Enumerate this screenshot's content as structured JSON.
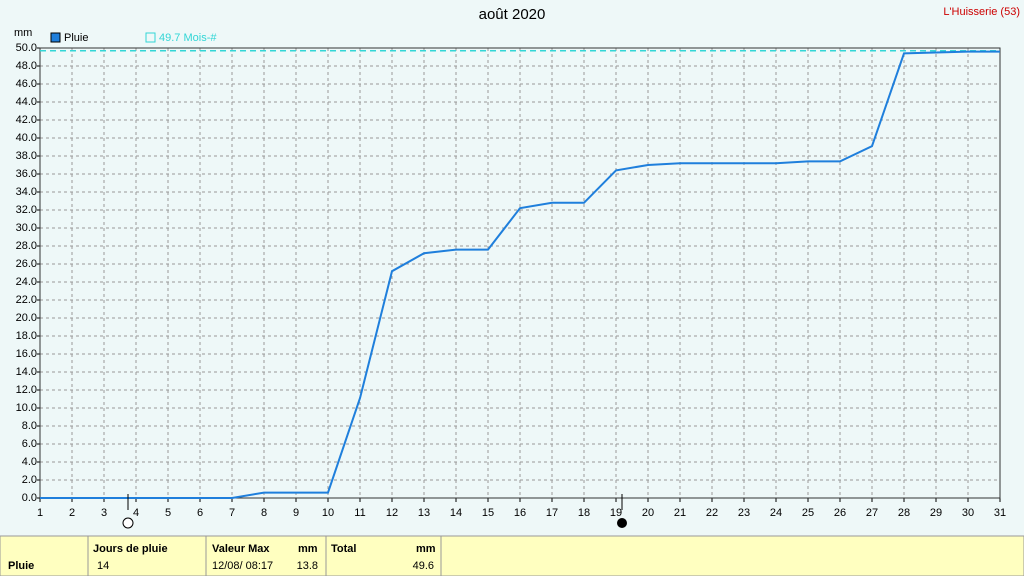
{
  "chart_data": {
    "type": "line",
    "title": "août 2020",
    "station": "L'Huisserie (53)",
    "y_label": "mm",
    "x": [
      1,
      2,
      3,
      4,
      5,
      6,
      7,
      8,
      9,
      10,
      11,
      12,
      13,
      14,
      15,
      16,
      17,
      18,
      19,
      20,
      21,
      22,
      23,
      24,
      25,
      26,
      27,
      28,
      29,
      30,
      31
    ],
    "series": [
      {
        "name": "Pluie",
        "color": "#1f7fdc",
        "values": [
          0,
          0,
          0,
          0,
          0,
          0,
          0,
          0.6,
          0.6,
          0.6,
          11.1,
          25.2,
          27.2,
          27.6,
          27.6,
          32.2,
          32.8,
          32.8,
          36.4,
          37.0,
          37.2,
          37.2,
          37.2,
          37.2,
          37.4,
          37.4,
          39.1,
          49.4,
          49.5,
          49.6,
          49.6
        ]
      }
    ],
    "reference": {
      "value": 49.7,
      "label": "49.7 Mois-#",
      "color": "#33d6d6"
    },
    "xlim": [
      1,
      31
    ],
    "ylim": [
      0,
      50
    ],
    "xticks": [
      1,
      2,
      3,
      4,
      5,
      6,
      7,
      8,
      9,
      10,
      11,
      12,
      13,
      14,
      15,
      16,
      17,
      18,
      19,
      20,
      21,
      22,
      23,
      24,
      25,
      26,
      27,
      28,
      29,
      30,
      31
    ],
    "yticks": [
      {
        "value": 0,
        "label": "0.0"
      },
      {
        "value": 2,
        "label": "2.0"
      },
      {
        "value": 4,
        "label": "4.0"
      },
      {
        "value": 6,
        "label": "6.0"
      },
      {
        "value": 8,
        "label": "8.0"
      },
      {
        "value": 10,
        "label": "10.0"
      },
      {
        "value": 12,
        "label": "12.0"
      },
      {
        "value": 14,
        "label": "14.0"
      },
      {
        "value": 16,
        "label": "16.0"
      },
      {
        "value": 18,
        "label": "18.0"
      },
      {
        "value": 20,
        "label": "20.0"
      },
      {
        "value": 22,
        "label": "22.0"
      },
      {
        "value": 24,
        "label": "24.0"
      },
      {
        "value": 26,
        "label": "26.0"
      },
      {
        "value": 28,
        "label": "28.0"
      },
      {
        "value": 30,
        "label": "30.0"
      },
      {
        "value": 32,
        "label": "32.0"
      },
      {
        "value": 34,
        "label": "34.0"
      },
      {
        "value": 36,
        "label": "36.0"
      },
      {
        "value": 38,
        "label": "38.0"
      },
      {
        "value": 40,
        "label": "40.0"
      },
      {
        "value": 42,
        "label": "42.0"
      },
      {
        "value": 44,
        "label": "44.0"
      },
      {
        "value": 46,
        "label": "46.0"
      },
      {
        "value": 48,
        "label": "48.0"
      },
      {
        "value": 50,
        "label": "50.0"
      }
    ],
    "grid": true
  },
  "table": {
    "header": [
      "Jours de pluie",
      "Valeur Max",
      "mm",
      "Total",
      "mm"
    ],
    "rows": [
      [
        "Pluie",
        "14",
        "12/08/ 08:17",
        "13.8",
        "49.6"
      ]
    ]
  }
}
